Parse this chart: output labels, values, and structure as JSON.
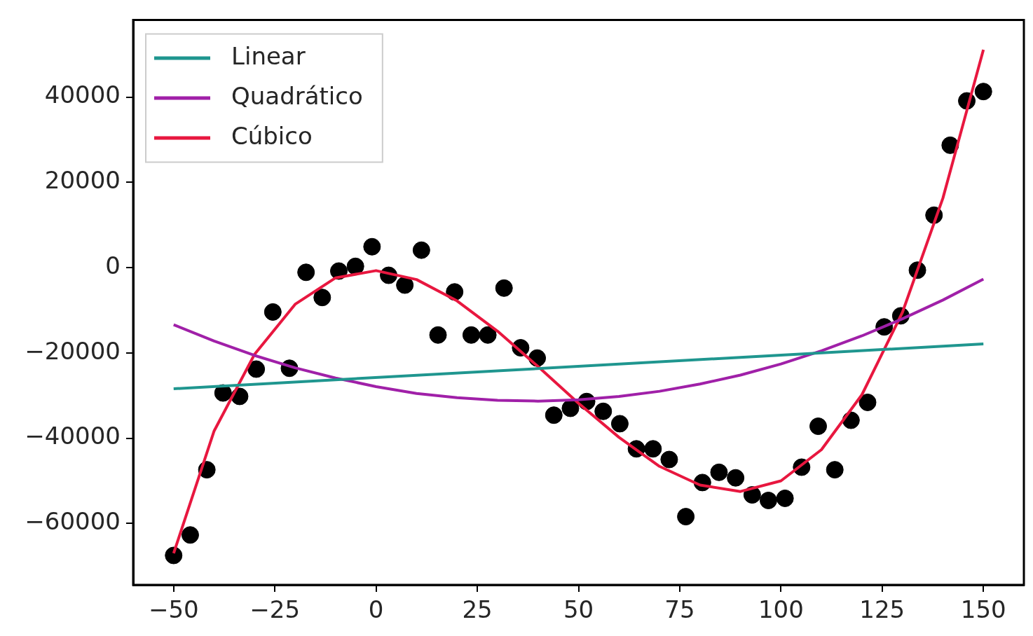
{
  "chart_data": {
    "type": "scatter",
    "legend": "top left",
    "grid": false,
    "xlim": [
      -60,
      160
    ],
    "ylim": [
      -74400,
      58100
    ],
    "xticks": [
      {
        "value": -50,
        "label": "−50"
      },
      {
        "value": -25,
        "label": "−25"
      },
      0,
      25,
      50,
      75,
      100,
      125,
      150
    ],
    "yticks": [
      {
        "value": -60000,
        "label": "−60000"
      },
      {
        "value": -40000,
        "label": "−40000"
      },
      {
        "value": -20000,
        "label": "−20000"
      },
      0,
      20000,
      40000
    ],
    "series": [
      {
        "marker": "circle",
        "color": "#000000",
        "x": [
          -50,
          -45.9,
          -41.8,
          -37.8,
          -33.7,
          -29.6,
          -25.5,
          -21.4,
          -17.3,
          -13.3,
          -9.2,
          -5.1,
          -1.0,
          3.1,
          7.1,
          11.2,
          15.3,
          19.4,
          23.5,
          27.6,
          31.6,
          35.7,
          39.8,
          43.9,
          48.0,
          52.0,
          56.1,
          60.2,
          64.3,
          68.4,
          72.4,
          76.5,
          80.6,
          84.7,
          88.8,
          92.9,
          96.9,
          101.0,
          105.1,
          109.2,
          113.3,
          117.3,
          121.4,
          125.5,
          129.6,
          133.7,
          137.8,
          141.8,
          145.9,
          150
        ],
        "values": [
          -67500,
          -62700,
          -47400,
          -29400,
          -30200,
          -23800,
          -10400,
          -23600,
          -1100,
          -7000,
          -800,
          300,
          4900,
          -1800,
          -4100,
          4100,
          -15800,
          -5700,
          -15800,
          -15800,
          -4800,
          -18800,
          -21200,
          -34600,
          -33000,
          -31400,
          -33700,
          -36600,
          -42500,
          -42500,
          -45000,
          -58400,
          -50400,
          -48000,
          -49300,
          -53300,
          -54600,
          -54100,
          -46800,
          -37200,
          -47400,
          -35800,
          -31600,
          -13900,
          -11300,
          -600,
          12300,
          28700,
          39100,
          41300
        ]
      },
      {
        "type": "line",
        "name": "Linear",
        "marker": "none",
        "color": "#1f968f",
        "x": [
          -50,
          150
        ],
        "values": [
          -28400,
          -17900
        ]
      },
      {
        "type": "line",
        "name": "Quadrático",
        "marker": "none",
        "color": "#a020a8",
        "x": [
          -50,
          -40,
          -30,
          -20,
          -10,
          0,
          10,
          20,
          30,
          40,
          50,
          60,
          70,
          80,
          90,
          100,
          110,
          120,
          130,
          140,
          150
        ],
        "values": [
          -13400,
          -17200,
          -20600,
          -23500,
          -25900,
          -27900,
          -29500,
          -30500,
          -31100,
          -31300,
          -31000,
          -30200,
          -29000,
          -27300,
          -25200,
          -22600,
          -19500,
          -16000,
          -12000,
          -7600,
          -2700
        ]
      },
      {
        "type": "line",
        "name": "Cúbico",
        "marker": "none",
        "color": "#e8173f",
        "x": [
          -50,
          -40,
          -30,
          -20,
          -10,
          0,
          10,
          20,
          30,
          40,
          50,
          60,
          70,
          80,
          90,
          100,
          110,
          120,
          130,
          140,
          150
        ],
        "values": [
          -67000,
          -38300,
          -20300,
          -8600,
          -2400,
          -700,
          -2800,
          -7800,
          -14900,
          -23200,
          -31800,
          -39800,
          -46600,
          -51000,
          -52500,
          -50000,
          -42700,
          -29800,
          -10500,
          16300,
          51100
        ]
      }
    ]
  }
}
